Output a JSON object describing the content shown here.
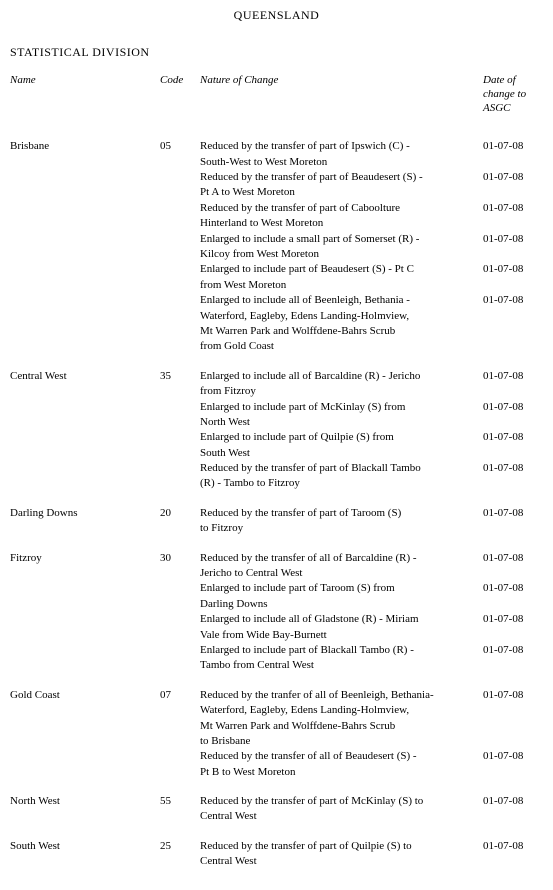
{
  "page": {
    "title": "QUEENSLAND",
    "section_heading": "STATISTICAL DIVISION"
  },
  "columns": {
    "name": "Name",
    "code": "Code",
    "change": "Nature of Change",
    "date": "Date of change to ASGC"
  },
  "divisions": [
    {
      "name": "Brisbane",
      "code": "05",
      "entries": [
        {
          "lines": [
            "Reduced by the transfer of part of Ipswich (C) -",
            "South-West to West Moreton"
          ],
          "date": "01-07-08"
        },
        {
          "lines": [
            "Reduced by the transfer of part of Beaudesert (S) -",
            "Pt A to West Moreton"
          ],
          "date": "01-07-08"
        },
        {
          "lines": [
            "Reduced by the transfer of part of Caboolture",
            "Hinterland to  West Moreton"
          ],
          "date": "01-07-08"
        },
        {
          "lines": [
            "Enlarged to include a small part of Somerset (R) -",
            "Kilcoy from West Moreton"
          ],
          "date": "01-07-08"
        },
        {
          "lines": [
            "Enlarged to include part of Beaudesert (S) - Pt C",
            "from West Moreton"
          ],
          "date": "01-07-08"
        },
        {
          "lines": [
            "Enlarged to include all of Beenleigh, Bethania -",
            "Waterford, Eagleby, Edens Landing-Holmview,",
            "Mt Warren Park and Wolffdene-Bahrs Scrub",
            "from Gold Coast"
          ],
          "date": "01-07-08"
        }
      ]
    },
    {
      "name": "Central West",
      "code": "35",
      "entries": [
        {
          "lines": [
            "Enlarged to include all of  Barcaldine (R) -  Jericho",
            "from Fitzroy"
          ],
          "date": "01-07-08"
        },
        {
          "lines": [
            "Enlarged to include part of McKinlay (S) from",
            "North West"
          ],
          "date": "01-07-08"
        },
        {
          "lines": [
            "Enlarged to include part of  Quilpie (S) from",
            "South West"
          ],
          "date": "01-07-08"
        },
        {
          "lines": [
            "Reduced by the transfer of part of Blackall Tambo",
            " (R) - Tambo to Fitzroy"
          ],
          "date": "01-07-08"
        }
      ]
    },
    {
      "name": "Darling Downs",
      "code": "20",
      "entries": [
        {
          "lines": [
            "Reduced by the transfer of part of Taroom (S)",
            "to Fitzroy"
          ],
          "date": "01-07-08"
        }
      ]
    },
    {
      "name": "Fitzroy",
      "code": "30",
      "entries": [
        {
          "lines": [
            "Reduced by the transfer of all of Barcaldine (R) -",
            "Jericho to Central West"
          ],
          "date": "01-07-08"
        },
        {
          "lines": [
            "Enlarged to include part of Taroom (S) from",
            "Darling Downs"
          ],
          "date": "01-07-08"
        },
        {
          "lines": [
            "Enlarged to include all of Gladstone (R) - Miriam",
            "Vale from Wide Bay-Burnett"
          ],
          "date": "01-07-08"
        },
        {
          "lines": [
            "Enlarged to include part of Blackall Tambo (R) -",
            "Tambo from Central West"
          ],
          "date": "01-07-08"
        }
      ]
    },
    {
      "name": "Gold Coast",
      "code": "07",
      "entries": [
        {
          "lines": [
            "Reduced by the tranfer of all of Beenleigh, Bethania-",
            "Waterford, Eagleby, Edens Landing-Holmview,",
            "Mt Warren Park and Wolffdene-Bahrs Scrub",
            "to Brisbane"
          ],
          "date": "01-07-08"
        },
        {
          "lines": [
            "Reduced by the transfer of all of Beaudesert (S) -",
            "Pt B to West Moreton"
          ],
          "date": "01-07-08"
        }
      ]
    },
    {
      "name": "North West",
      "code": "55",
      "entries": [
        {
          "lines": [
            "Reduced by the transfer of part of McKinlay (S) to",
            "Central West"
          ],
          "date": "01-07-08"
        }
      ]
    },
    {
      "name": "South West",
      "code": "25",
      "entries": [
        {
          "lines": [
            "Reduced by the transfer of part of Quilpie (S) to",
            "Central West"
          ],
          "date": "01-07-08"
        }
      ]
    }
  ]
}
